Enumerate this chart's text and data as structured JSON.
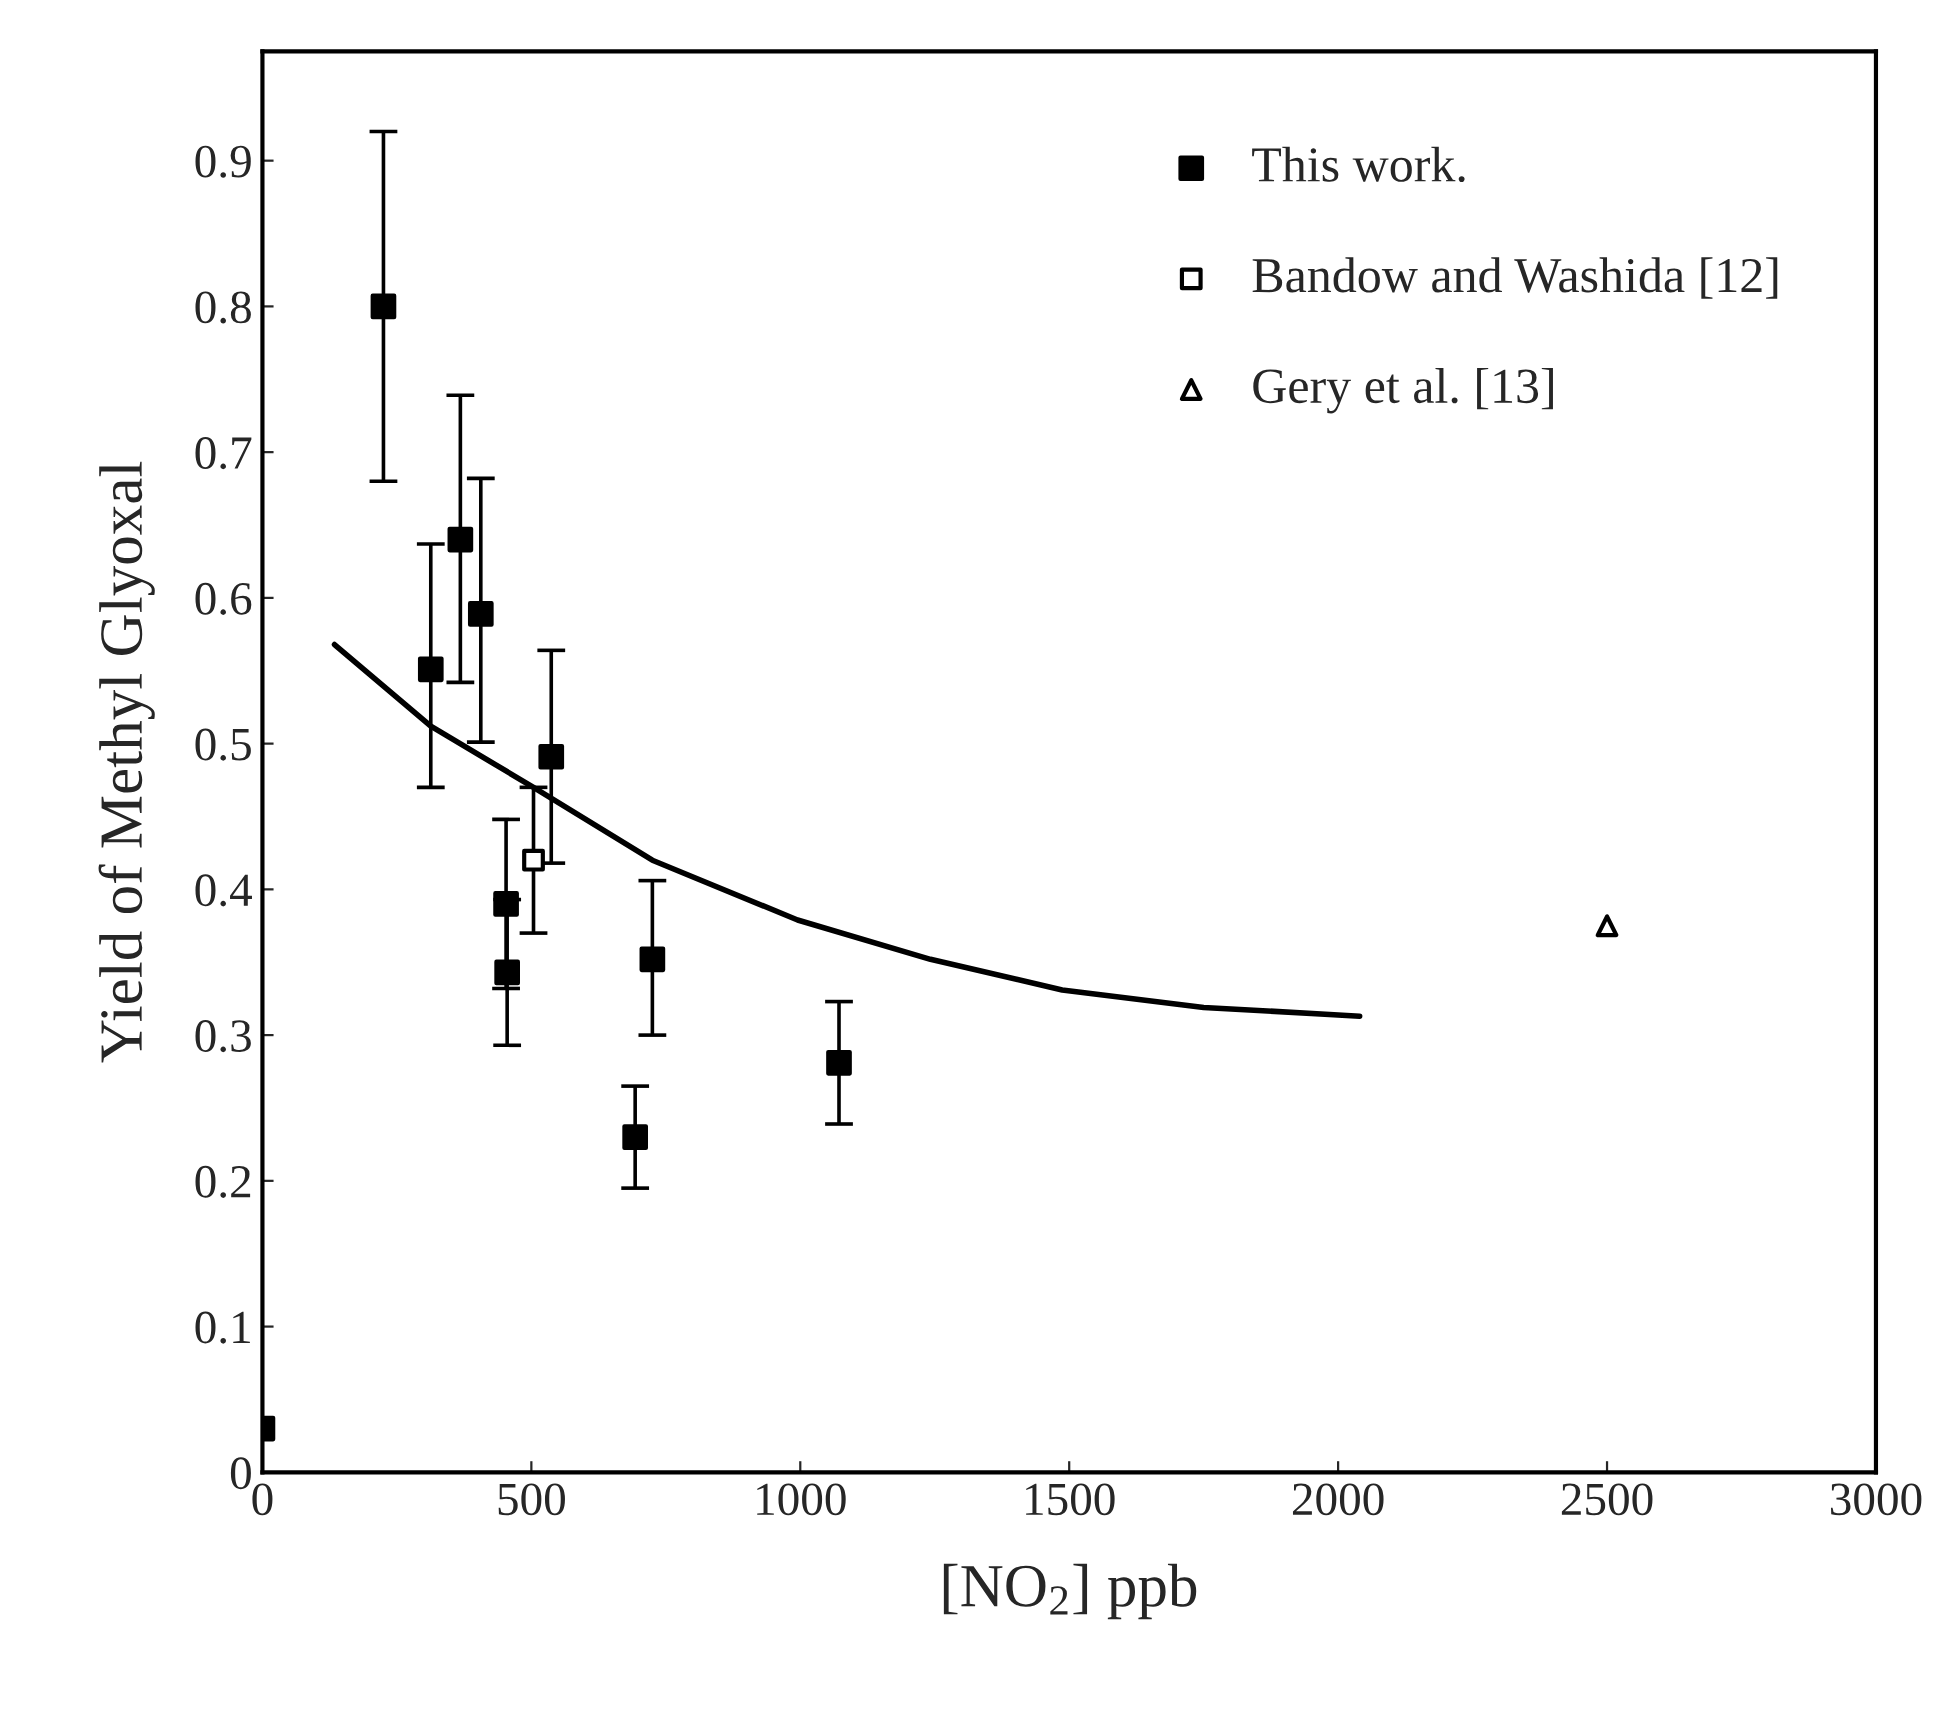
{
  "chart_data": {
    "type": "scatter",
    "xlabel": "[NO$_{2}$] ppb",
    "ylabel": "Yield of Methyl Glyoxal",
    "xlim": [
      0,
      3000
    ],
    "xticks": [
      0,
      500,
      1000,
      1500,
      2000,
      2500,
      3000
    ],
    "ylim": [
      0,
      0.975
    ],
    "yticks": [
      0,
      0.1,
      0.2,
      0.3,
      0.4,
      0.5,
      0.6,
      0.7,
      0.8,
      0.9
    ],
    "grid": false,
    "legend": "top right",
    "series": [
      {
        "name": "This work.",
        "marker": "square",
        "color": "#000000",
        "x": [
          0,
          225,
          313,
          368,
          406,
          453,
          455,
          537,
          693,
          725,
          1072
        ],
        "values": [
          0.03,
          0.8,
          0.551,
          0.64,
          0.589,
          0.39,
          0.343,
          0.491,
          0.23,
          0.352,
          0.281
        ],
        "errors": [
          null,
          [
            0.68,
            0.92
          ],
          [
            0.47,
            0.637
          ],
          [
            0.542,
            0.739
          ],
          [
            0.501,
            0.682
          ],
          [
            0.332,
            0.448
          ],
          0.05,
          [
            0.418,
            0.564
          ],
          [
            0.195,
            0.265
          ],
          [
            0.3,
            0.406
          ],
          [
            0.239,
            0.323
          ]
        ]
      },
      {
        "name": "Bandow and Washida [12]",
        "marker": "square",
        "color": "#000000",
        "x": [
          504
        ],
        "values": [
          0.42
        ],
        "errors": [
          [
            0.37,
            0.47
          ]
        ]
      },
      {
        "name": "Gery et al. [13]",
        "marker": "triangle",
        "color": "#000000",
        "x": [
          2500
        ],
        "values": [
          0.375
        ]
      },
      {
        "type": "line",
        "color": "#000000",
        "marker": "none",
        "x": [
          134,
          313,
          504,
          725,
          995,
          1242,
          1487,
          1750,
          2040
        ],
        "values": [
          0.568,
          0.512,
          0.47,
          0.42,
          0.379,
          0.352,
          0.331,
          0.319,
          0.313
        ]
      }
    ]
  }
}
